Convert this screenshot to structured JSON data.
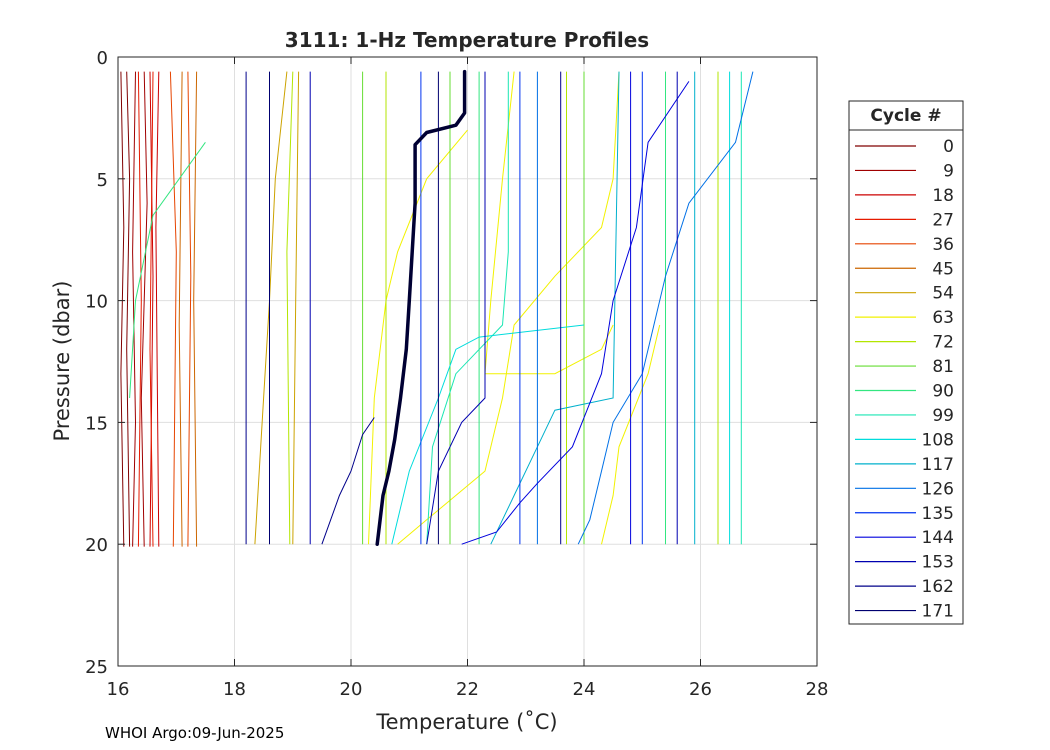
{
  "footer": "WHOI Argo:09-Jun-2025",
  "chart_data": {
    "type": "line",
    "title": "3111: 1-Hz Temperature Profiles",
    "xlabel": "Temperature (˚C)",
    "ylabel": "Pressure (dbar)",
    "xlim": [
      16,
      28
    ],
    "ylim": [
      0,
      25
    ],
    "y_reversed": true,
    "xticks": [
      "16",
      "18",
      "20",
      "22",
      "24",
      "26",
      "28"
    ],
    "yticks": [
      "0",
      "5",
      "10",
      "15",
      "20",
      "25"
    ],
    "grid": true,
    "legend": {
      "title": "Cycle #",
      "placement": "right-outside",
      "entries": [
        {
          "label": "0",
          "color": "#800000"
        },
        {
          "label": "9",
          "color": "#a00000"
        },
        {
          "label": "18",
          "color": "#cc0000"
        },
        {
          "label": "27",
          "color": "#e61a00"
        },
        {
          "label": "36",
          "color": "#e64400"
        },
        {
          "label": "45",
          "color": "#cc6600"
        },
        {
          "label": "54",
          "color": "#cca300"
        },
        {
          "label": "63",
          "color": "#f2f200"
        },
        {
          "label": "72",
          "color": "#b3e600"
        },
        {
          "label": "81",
          "color": "#66dd33"
        },
        {
          "label": "90",
          "color": "#33e680"
        },
        {
          "label": "99",
          "color": "#1ae6b3"
        },
        {
          "label": "108",
          "color": "#00dcdc"
        },
        {
          "label": "117",
          "color": "#00b0cc"
        },
        {
          "label": "126",
          "color": "#0070e6"
        },
        {
          "label": "135",
          "color": "#0033f0"
        },
        {
          "label": "144",
          "color": "#0000dd"
        },
        {
          "label": "153",
          "color": "#0000b0"
        },
        {
          "label": "162",
          "color": "#00008a"
        },
        {
          "label": "171",
          "color": "#000070"
        }
      ]
    },
    "highlight_profile": {
      "color": "#000033",
      "points": [
        [
          21.95,
          0.6
        ],
        [
          21.95,
          2.3
        ],
        [
          21.8,
          2.8
        ],
        [
          21.3,
          3.1
        ],
        [
          21.1,
          3.6
        ],
        [
          21.1,
          6
        ],
        [
          21.05,
          8
        ],
        [
          21.0,
          10
        ],
        [
          20.95,
          12
        ],
        [
          20.85,
          14
        ],
        [
          20.75,
          15.7
        ],
        [
          20.65,
          17
        ],
        [
          20.55,
          18
        ],
        [
          20.45,
          20
        ]
      ]
    },
    "series": [
      {
        "color": "#800000",
        "points": [
          [
            16.05,
            0.6
          ],
          [
            16.1,
            7
          ],
          [
            16.05,
            13
          ],
          [
            16.1,
            20.1
          ]
        ]
      },
      {
        "color": "#800000",
        "points": [
          [
            16.15,
            0.6
          ],
          [
            16.2,
            5
          ],
          [
            16.15,
            12
          ],
          [
            16.2,
            20.1
          ]
        ]
      },
      {
        "color": "#a00000",
        "points": [
          [
            16.3,
            0.6
          ],
          [
            16.25,
            8
          ],
          [
            16.3,
            15
          ],
          [
            16.25,
            20.1
          ]
        ]
      },
      {
        "color": "#a00000",
        "points": [
          [
            16.45,
            0.6
          ],
          [
            16.5,
            6
          ],
          [
            16.4,
            14
          ],
          [
            16.45,
            20.1
          ]
        ]
      },
      {
        "color": "#cc0000",
        "points": [
          [
            16.55,
            0.6
          ],
          [
            16.6,
            9
          ],
          [
            16.55,
            20.1
          ]
        ]
      },
      {
        "color": "#cc0000",
        "points": [
          [
            16.7,
            0.6
          ],
          [
            16.65,
            7
          ],
          [
            16.7,
            20.1
          ]
        ]
      },
      {
        "color": "#e61a00",
        "points": [
          [
            16.35,
            0.6
          ],
          [
            16.4,
            10
          ],
          [
            16.35,
            20.1
          ]
        ]
      },
      {
        "color": "#e61a00",
        "points": [
          [
            16.6,
            0.6
          ],
          [
            16.55,
            12
          ],
          [
            16.6,
            20.1
          ]
        ]
      },
      {
        "color": "#e64400",
        "points": [
          [
            16.9,
            0.6
          ],
          [
            17.0,
            8
          ],
          [
            16.95,
            20.1
          ]
        ]
      },
      {
        "color": "#e64400",
        "points": [
          [
            17.2,
            0.6
          ],
          [
            17.25,
            9
          ],
          [
            17.2,
            20.1
          ]
        ]
      },
      {
        "color": "#cc6600",
        "points": [
          [
            17.35,
            0.6
          ],
          [
            17.3,
            10
          ],
          [
            17.35,
            20.1
          ]
        ]
      },
      {
        "color": "#cc6600",
        "points": [
          [
            17.1,
            0.6
          ],
          [
            17.05,
            11
          ],
          [
            17.1,
            20.1
          ]
        ]
      },
      {
        "color": "#cca300",
        "points": [
          [
            18.9,
            0.6
          ],
          [
            18.7,
            5
          ],
          [
            18.6,
            10
          ],
          [
            18.5,
            14
          ],
          [
            18.35,
            20
          ]
        ]
      },
      {
        "color": "#cca300",
        "points": [
          [
            19.1,
            0.6
          ],
          [
            19.05,
            10
          ],
          [
            19.0,
            20
          ]
        ]
      },
      {
        "color": "#f2f200",
        "points": [
          [
            22.0,
            3
          ],
          [
            21.3,
            5
          ],
          [
            20.8,
            8
          ],
          [
            20.6,
            10
          ],
          [
            20.4,
            14
          ],
          [
            20.3,
            20
          ]
        ]
      },
      {
        "color": "#f2f200",
        "points": [
          [
            22.8,
            0.6
          ],
          [
            22.6,
            5
          ],
          [
            22.4,
            10
          ],
          [
            22.3,
            13
          ],
          [
            23.5,
            13
          ],
          [
            24.3,
            12
          ],
          [
            24.5,
            11
          ]
        ]
      },
      {
        "color": "#f2f200",
        "points": [
          [
            24.6,
            0.6
          ],
          [
            24.5,
            5
          ],
          [
            24.3,
            7
          ],
          [
            23.5,
            9
          ],
          [
            22.8,
            11
          ],
          [
            22.6,
            14
          ],
          [
            22.3,
            17
          ],
          [
            21.3,
            19
          ],
          [
            20.8,
            20
          ]
        ]
      },
      {
        "color": "#f2f200",
        "points": [
          [
            25.3,
            11
          ],
          [
            25.1,
            13
          ],
          [
            24.6,
            16
          ],
          [
            24.5,
            18
          ],
          [
            24.3,
            20
          ]
        ]
      },
      {
        "color": "#b3e600",
        "points": [
          [
            19.0,
            0.6
          ],
          [
            18.9,
            8
          ],
          [
            18.95,
            20
          ]
        ]
      },
      {
        "color": "#b3e600",
        "points": [
          [
            20.6,
            0.6
          ],
          [
            20.6,
            20
          ]
        ]
      },
      {
        "color": "#b3e600",
        "points": [
          [
            23.7,
            0.6
          ],
          [
            23.7,
            20
          ]
        ]
      },
      {
        "color": "#b3e600",
        "points": [
          [
            26.3,
            0.6
          ],
          [
            26.3,
            20
          ]
        ]
      },
      {
        "color": "#66dd33",
        "points": [
          [
            20.2,
            0.6
          ],
          [
            20.2,
            20
          ]
        ]
      },
      {
        "color": "#66dd33",
        "points": [
          [
            21.7,
            0.6
          ],
          [
            21.7,
            20
          ]
        ]
      },
      {
        "color": "#66dd33",
        "points": [
          [
            24.0,
            0.6
          ],
          [
            24.0,
            20
          ]
        ]
      },
      {
        "color": "#33e680",
        "points": [
          [
            17.5,
            3.5
          ],
          [
            16.6,
            6.5
          ],
          [
            16.3,
            10
          ],
          [
            16.2,
            14
          ]
        ]
      },
      {
        "color": "#33e680",
        "points": [
          [
            22.2,
            0.6
          ],
          [
            22.2,
            20
          ]
        ]
      },
      {
        "color": "#33e680",
        "points": [
          [
            25.4,
            0.6
          ],
          [
            25.4,
            20
          ]
        ]
      },
      {
        "color": "#1ae6b3",
        "points": [
          [
            22.7,
            0.6
          ],
          [
            22.7,
            8
          ],
          [
            22.6,
            11
          ],
          [
            21.8,
            13
          ],
          [
            21.4,
            16
          ],
          [
            21.3,
            20
          ]
        ]
      },
      {
        "color": "#1ae6b3",
        "points": [
          [
            26.7,
            0.6
          ],
          [
            26.7,
            20
          ]
        ]
      },
      {
        "color": "#00dcdc",
        "points": [
          [
            24.0,
            11
          ],
          [
            22.2,
            11.5
          ],
          [
            21.8,
            12
          ],
          [
            21.5,
            14
          ],
          [
            21.0,
            17
          ],
          [
            20.7,
            20
          ]
        ]
      },
      {
        "color": "#00dcdc",
        "points": [
          [
            26.5,
            0.6
          ],
          [
            26.5,
            20
          ]
        ]
      },
      {
        "color": "#00b0cc",
        "points": [
          [
            24.6,
            0.6
          ],
          [
            24.5,
            14
          ],
          [
            23.5,
            14.5
          ],
          [
            23.2,
            16
          ],
          [
            22.8,
            18
          ],
          [
            22.4,
            20
          ]
        ]
      },
      {
        "color": "#00b0cc",
        "points": [
          [
            25.9,
            0.6
          ],
          [
            25.9,
            20
          ]
        ]
      },
      {
        "color": "#0070e6",
        "points": [
          [
            26.9,
            0.6
          ],
          [
            26.6,
            3.5
          ],
          [
            25.8,
            6
          ],
          [
            25.4,
            9
          ],
          [
            25.2,
            11
          ],
          [
            25.0,
            13
          ],
          [
            24.5,
            15
          ],
          [
            24.3,
            17
          ],
          [
            24.1,
            19
          ],
          [
            23.9,
            20
          ]
        ]
      },
      {
        "color": "#0070e6",
        "points": [
          [
            23.2,
            0.6
          ],
          [
            23.2,
            20
          ]
        ]
      },
      {
        "color": "#0033f0",
        "points": [
          [
            21.2,
            0.6
          ],
          [
            21.2,
            20
          ]
        ]
      },
      {
        "color": "#0033f0",
        "points": [
          [
            22.9,
            0.6
          ],
          [
            22.9,
            20
          ]
        ]
      },
      {
        "color": "#0033f0",
        "points": [
          [
            25.0,
            0.6
          ],
          [
            25.0,
            20
          ]
        ]
      },
      {
        "color": "#0000dd",
        "points": [
          [
            25.8,
            1
          ],
          [
            25.1,
            3.5
          ],
          [
            24.9,
            7
          ],
          [
            24.5,
            10
          ],
          [
            24.3,
            13
          ],
          [
            23.8,
            16
          ],
          [
            23.2,
            17.5
          ],
          [
            22.9,
            18.3
          ],
          [
            22.5,
            19.5
          ],
          [
            21.9,
            20
          ]
        ]
      },
      {
        "color": "#0000dd",
        "points": [
          [
            24.8,
            0.6
          ],
          [
            24.8,
            20
          ]
        ]
      },
      {
        "color": "#0000b0",
        "points": [
          [
            19.3,
            0.6
          ],
          [
            19.3,
            20
          ]
        ]
      },
      {
        "color": "#0000b0",
        "points": [
          [
            22.3,
            0.6
          ],
          [
            22.3,
            14
          ],
          [
            21.9,
            15
          ],
          [
            21.5,
            17
          ],
          [
            21.3,
            20
          ]
        ]
      },
      {
        "color": "#0000b0",
        "points": [
          [
            25.6,
            0.6
          ],
          [
            25.6,
            20
          ]
        ]
      },
      {
        "color": "#00008a",
        "points": [
          [
            18.2,
            0.6
          ],
          [
            18.2,
            20
          ]
        ]
      },
      {
        "color": "#00008a",
        "points": [
          [
            20.4,
            14.8
          ],
          [
            20.2,
            15.5
          ],
          [
            20.0,
            17
          ],
          [
            19.8,
            18
          ],
          [
            19.5,
            20
          ]
        ]
      },
      {
        "color": "#00008a",
        "points": [
          [
            23.6,
            0.6
          ],
          [
            23.6,
            20
          ]
        ]
      },
      {
        "color": "#000070",
        "points": [
          [
            18.6,
            0.6
          ],
          [
            18.6,
            20
          ]
        ]
      },
      {
        "color": "#000070",
        "points": [
          [
            21.5,
            0.6
          ],
          [
            21.5,
            20
          ]
        ]
      }
    ]
  }
}
